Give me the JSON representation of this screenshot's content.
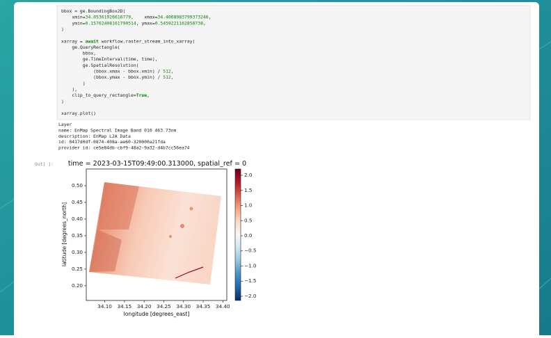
{
  "notebook": {
    "code": [
      [
        [
          "bbox = ge.BoundingBox2D("
        ],
        [
          "    xmin=",
          "34.05361926616779",
          ",    xmax=",
          "34.4068983799373246",
          ","
        ],
        [
          "    ymin=",
          "0.15762408161790514",
          ", ymax=",
          "0.5459221162858738",
          ","
        ],
        [
          ")"
        ]
      ],
      [
        [
          "xarray = ",
          "await",
          " workflow.raster_stream_into_xarray("
        ],
        [
          "    ge.QueryRectangle("
        ],
        [
          "        bbox,"
        ],
        [
          "        ge.TimeInterval(time, time),"
        ],
        [
          "        ge.SpatialResolution("
        ],
        [
          "            (bbox.xmax - bbox.xmin) / ",
          "512",
          ","
        ],
        [
          "            (bbox.ymax - bbox.ymin) / ",
          "512",
          ","
        ],
        [
          "        )"
        ],
        [
          "    ),"
        ],
        [
          "    clip_to_query_rectangle=",
          "True",
          ","
        ],
        [
          ")"
        ]
      ],
      [
        [
          "xarray.plot()"
        ]
      ]
    ],
    "output": [
      "Layer",
      "name: EnMap Spectral Image Band 010 463.73nm",
      "description: EnMap L2A Data",
      "id: 0417d0df-0874-408a-ae60-320000a21fda",
      "provider id: ce5e84db-cbf9-48a2-9a32-d4b7cc56ea74"
    ],
    "prompt": "Out[ ]:"
  },
  "chart_data": {
    "type": "raster",
    "title": "time = 2023-03-15T09:49:00.313000, spatial_ref = 0",
    "xlabel": "longitude [degrees_east]",
    "ylabel": "latitude [degrees_north]",
    "xlim": [
      34.053,
      34.41
    ],
    "ylim": [
      0.156,
      0.55
    ],
    "xticks": [
      {
        "value": 34.1,
        "label": "34.10"
      },
      {
        "value": 34.15,
        "label": "34.15"
      },
      {
        "value": 34.2,
        "label": "34.20"
      },
      {
        "value": 34.25,
        "label": "34.25"
      },
      {
        "value": 34.3,
        "label": "34.30"
      },
      {
        "value": 34.35,
        "label": "34.35"
      },
      {
        "value": 34.4,
        "label": "34.40"
      }
    ],
    "yticks": [
      {
        "value": 0.2,
        "label": "0.20"
      },
      {
        "value": 0.25,
        "label": "0.25"
      },
      {
        "value": 0.3,
        "label": "0.30"
      },
      {
        "value": 0.35,
        "label": "0.35"
      },
      {
        "value": 0.4,
        "label": "0.40"
      },
      {
        "value": 0.45,
        "label": "0.45"
      },
      {
        "value": 0.5,
        "label": "0.50"
      }
    ],
    "colorbar": {
      "lim": [
        -2.138,
        2.207
      ],
      "ticks": [
        {
          "value": 2,
          "label": "2.0"
        },
        {
          "value": 1.5,
          "label": "1.5"
        },
        {
          "value": 1,
          "label": "1.0"
        },
        {
          "value": 0.5,
          "label": "0.5"
        },
        {
          "value": 0,
          "label": "0.0"
        },
        {
          "value": -0.5,
          "label": "−0.5"
        },
        {
          "value": -1,
          "label": "−1.0"
        },
        {
          "value": -1.5,
          "label": "−1.5"
        },
        {
          "value": -2,
          "label": "−2.0"
        }
      ],
      "colors": [
        "#053061",
        "#2166ac",
        "#4393c3",
        "#92c5de",
        "#d1e5f0",
        "#f7f7f7",
        "#fddbc7",
        "#f4a582",
        "#d6604d",
        "#b2182b",
        "#67001f"
      ]
    }
  }
}
